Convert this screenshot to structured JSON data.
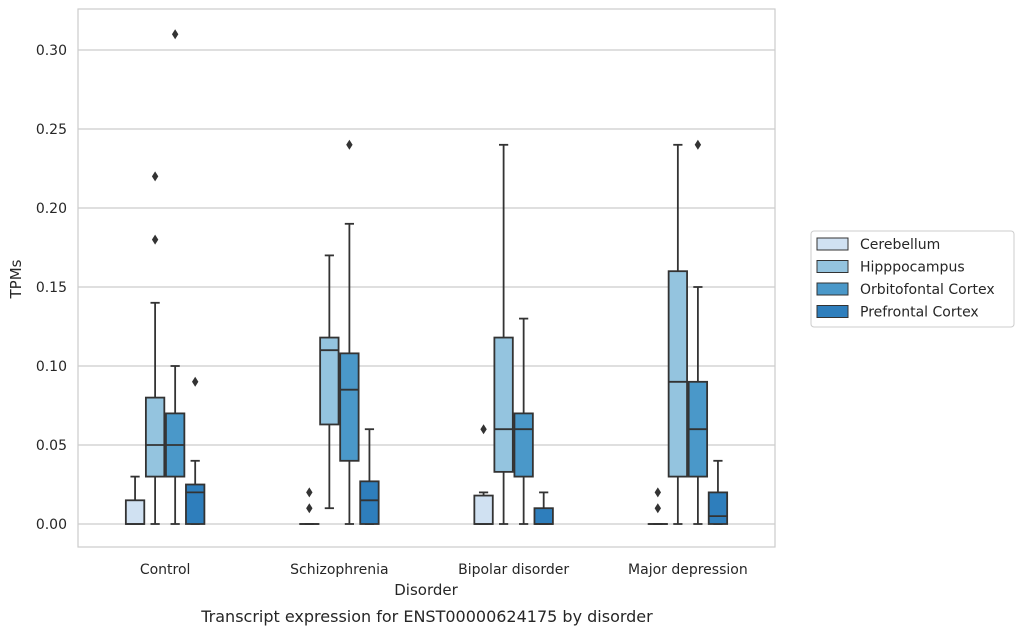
{
  "chart_data": {
    "type": "box",
    "xlabel": "Disorder",
    "ylabel": "TPMs",
    "caption": "Transcript expression for ENST00000624175 by disorder",
    "ylim": [
      -0.015,
      0.326
    ],
    "yticks": [
      "0.00",
      "0.05",
      "0.10",
      "0.15",
      "0.20",
      "0.25",
      "0.30"
    ],
    "grid": true,
    "legend_position": "right",
    "categories": [
      "Control",
      "Schizophrenia",
      "Bipolar disorder",
      "Major depression"
    ],
    "series": [
      {
        "name": "Cerebellum",
        "color": "#d0e1f2",
        "boxes": [
          {
            "whislo": 0,
            "q1": 0,
            "med": 0,
            "q3": 0.015,
            "whishi": 0.03,
            "fliers": []
          },
          {
            "whislo": 0,
            "q1": 0,
            "med": 0,
            "q3": 0,
            "whishi": 0,
            "fliers": [
              0.01,
              0.02
            ]
          },
          {
            "whislo": 0,
            "q1": 0,
            "med": 0,
            "q3": 0.018,
            "whishi": 0.02,
            "fliers": [
              0.06
            ]
          },
          {
            "whislo": 0,
            "q1": 0,
            "med": 0,
            "q3": 0,
            "whishi": 0,
            "fliers": [
              0.01,
              0.02
            ]
          }
        ]
      },
      {
        "name": "Hipppocampus",
        "color": "#94c4df",
        "boxes": [
          {
            "whislo": 0,
            "q1": 0.03,
            "med": 0.05,
            "q3": 0.08,
            "whishi": 0.14,
            "fliers": [
              0.18,
              0.22
            ]
          },
          {
            "whislo": 0.01,
            "q1": 0.063,
            "med": 0.11,
            "q3": 0.118,
            "whishi": 0.17,
            "fliers": []
          },
          {
            "whislo": 0,
            "q1": 0.033,
            "med": 0.06,
            "q3": 0.118,
            "whishi": 0.24,
            "fliers": []
          },
          {
            "whislo": 0,
            "q1": 0.03,
            "med": 0.09,
            "q3": 0.16,
            "whishi": 0.24,
            "fliers": []
          }
        ]
      },
      {
        "name": "Orbitofontal Cortex",
        "color": "#4a98c9",
        "boxes": [
          {
            "whislo": 0,
            "q1": 0.03,
            "med": 0.05,
            "q3": 0.07,
            "whishi": 0.1,
            "fliers": [
              0.31
            ]
          },
          {
            "whislo": 0,
            "q1": 0.04,
            "med": 0.085,
            "q3": 0.108,
            "whishi": 0.19,
            "fliers": [
              0.24
            ]
          },
          {
            "whislo": 0,
            "q1": 0.03,
            "med": 0.06,
            "q3": 0.07,
            "whishi": 0.13,
            "fliers": []
          },
          {
            "whislo": 0,
            "q1": 0.03,
            "med": 0.06,
            "q3": 0.09,
            "whishi": 0.15,
            "fliers": [
              0.24
            ]
          }
        ]
      },
      {
        "name": "Prefrontal Cortex",
        "color": "#2e7ebc",
        "boxes": [
          {
            "whislo": 0,
            "q1": 0,
            "med": 0.02,
            "q3": 0.025,
            "whishi": 0.04,
            "fliers": [
              0.09
            ]
          },
          {
            "whislo": 0,
            "q1": 0,
            "med": 0.015,
            "q3": 0.027,
            "whishi": 0.06,
            "fliers": []
          },
          {
            "whislo": 0,
            "q1": 0,
            "med": 0,
            "q3": 0.01,
            "whishi": 0.02,
            "fliers": []
          },
          {
            "whislo": 0,
            "q1": 0,
            "med": 0.005,
            "q3": 0.02,
            "whishi": 0.04,
            "fliers": []
          }
        ]
      }
    ]
  }
}
